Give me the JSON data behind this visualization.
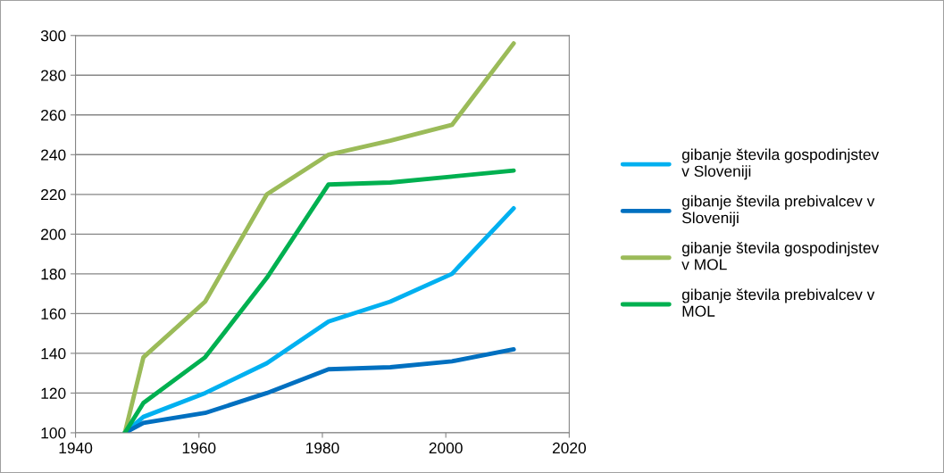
{
  "chart_data": {
    "type": "line",
    "x": [
      1948,
      1951,
      1961,
      1971,
      1981,
      1991,
      2001,
      2011
    ],
    "series": [
      {
        "name": "gibanje števila gospodinjstev\nv Sloveniji",
        "color": "#00b0f0",
        "values": [
          100,
          108,
          120,
          135,
          156,
          166,
          180,
          213
        ]
      },
      {
        "name": "gibanje števila prebivalcev v\nSloveniji",
        "color": "#0070c0",
        "values": [
          100,
          105,
          110,
          120,
          132,
          133,
          136,
          142
        ]
      },
      {
        "name": "gibanje števila gospodinjstev\nv MOL",
        "color": "#9bbb59",
        "values": [
          100,
          138,
          166,
          220,
          240,
          247,
          255,
          296
        ]
      },
      {
        "name": "gibanje števila prebivalcev v\nMOL",
        "color": "#00b050",
        "values": [
          100,
          115,
          138,
          178,
          225,
          226,
          229,
          232
        ]
      }
    ],
    "xlim": [
      1940,
      2020
    ],
    "xticks": [
      1940,
      1960,
      1980,
      2000,
      2020
    ],
    "ylim": [
      100,
      300
    ],
    "yticks": [
      100,
      120,
      140,
      160,
      180,
      200,
      220,
      240,
      260,
      280,
      300
    ],
    "grid": "y",
    "legend": "right",
    "marker": "none",
    "line_style": "solid"
  }
}
